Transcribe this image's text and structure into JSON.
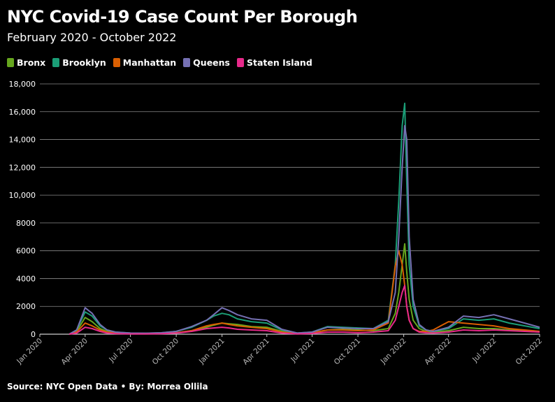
{
  "chart_data": {
    "type": "line",
    "title": "NYC Covid-19 Case Count Per Borough",
    "subtitle": "February 2020 - October 2022",
    "source": "Source: NYC Open Data • By: Morrea Ollila",
    "ylim": [
      0,
      18000
    ],
    "y_ticks": [
      0,
      2000,
      4000,
      6000,
      8000,
      10000,
      12000,
      14000,
      16000,
      18000
    ],
    "y_tick_labels": [
      "0",
      "2000",
      "4000",
      "6000",
      "8000",
      "10,000",
      "12,000",
      "14,000",
      "16,000",
      "18,000"
    ],
    "x_ticks": [
      "2020-01-01",
      "2020-04-01",
      "2020-07-01",
      "2020-10-01",
      "2021-01-01",
      "2021-04-01",
      "2021-07-01",
      "2021-10-01",
      "2022-01-01",
      "2022-04-01",
      "2022-07-01",
      "2022-10-01"
    ],
    "x_tick_labels": [
      "Jan 2020",
      "Apr 2020",
      "Jul 2020",
      "Oct 2020",
      "Jan 2021",
      "Apr 2021",
      "Jul 2021",
      "Oct 2021",
      "Jan 2022",
      "Apr 2022",
      "Jul 2022",
      "Oct 2022"
    ],
    "x_range": [
      "2020-01-01",
      "2022-10-01"
    ],
    "grid": "horizontal",
    "legend_position": "top-left",
    "x": [
      "2020-02-29",
      "2020-03-15",
      "2020-04-01",
      "2020-04-15",
      "2020-05-01",
      "2020-05-15",
      "2020-06-01",
      "2020-07-01",
      "2020-08-01",
      "2020-09-01",
      "2020-10-01",
      "2020-11-01",
      "2020-12-01",
      "2020-12-15",
      "2021-01-01",
      "2021-01-15",
      "2021-02-01",
      "2021-03-01",
      "2021-04-01",
      "2021-05-01",
      "2021-06-01",
      "2021-07-01",
      "2021-08-01",
      "2021-09-01",
      "2021-10-01",
      "2021-11-01",
      "2021-12-01",
      "2021-12-15",
      "2021-12-22",
      "2021-12-29",
      "2022-01-03",
      "2022-01-07",
      "2022-01-12",
      "2022-01-20",
      "2022-02-01",
      "2022-02-15",
      "2022-03-01",
      "2022-04-01",
      "2022-05-01",
      "2022-06-01",
      "2022-07-01",
      "2022-08-01",
      "2022-09-01",
      "2022-10-01"
    ],
    "series": [
      {
        "name": "Bronx",
        "color": "#66a61e",
        "values": [
          0,
          200,
          1200,
          900,
          400,
          200,
          100,
          50,
          50,
          60,
          100,
          250,
          500,
          650,
          800,
          750,
          700,
          550,
          500,
          200,
          60,
          100,
          300,
          350,
          300,
          250,
          400,
          1500,
          3000,
          5000,
          6500,
          4500,
          2500,
          1000,
          400,
          200,
          150,
          250,
          500,
          400,
          400,
          300,
          250,
          200
        ]
      },
      {
        "name": "Brooklyn",
        "color": "#1b9e77",
        "values": [
          0,
          300,
          1600,
          1300,
          600,
          300,
          150,
          80,
          70,
          100,
          200,
          500,
          1000,
          1300,
          1500,
          1400,
          1100,
          900,
          800,
          300,
          80,
          150,
          550,
          500,
          450,
          400,
          1000,
          5000,
          9600,
          15000,
          16600,
          11000,
          5000,
          2000,
          600,
          300,
          200,
          400,
          1100,
          1000,
          1100,
          800,
          600,
          400
        ]
      },
      {
        "name": "Manhattan",
        "color": "#d95f02",
        "values": [
          0,
          150,
          800,
          600,
          300,
          150,
          80,
          40,
          40,
          50,
          100,
          250,
          600,
          700,
          800,
          700,
          600,
          500,
          400,
          150,
          40,
          100,
          300,
          300,
          250,
          300,
          800,
          4900,
          6000,
          5000,
          3500,
          2000,
          1000,
          400,
          200,
          200,
          300,
          900,
          800,
          700,
          600,
          400,
          300,
          200
        ]
      },
      {
        "name": "Queens",
        "color": "#7570b3",
        "values": [
          0,
          300,
          1900,
          1500,
          700,
          300,
          150,
          80,
          70,
          100,
          200,
          550,
          1000,
          1400,
          1900,
          1700,
          1400,
          1100,
          1000,
          350,
          80,
          150,
          500,
          450,
          400,
          400,
          900,
          3000,
          7000,
          12000,
          15000,
          14000,
          7000,
          2500,
          700,
          300,
          200,
          500,
          1300,
          1200,
          1400,
          1100,
          800,
          500
        ]
      },
      {
        "name": "Staten Island",
        "color": "#e7298a",
        "values": [
          0,
          80,
          500,
          400,
          200,
          80,
          40,
          20,
          20,
          30,
          80,
          200,
          400,
          450,
          500,
          450,
          350,
          300,
          250,
          80,
          20,
          50,
          150,
          150,
          100,
          150,
          250,
          1000,
          2000,
          3000,
          3500,
          2000,
          1000,
          400,
          150,
          100,
          80,
          150,
          300,
          250,
          300,
          250,
          200,
          150
        ]
      }
    ]
  }
}
